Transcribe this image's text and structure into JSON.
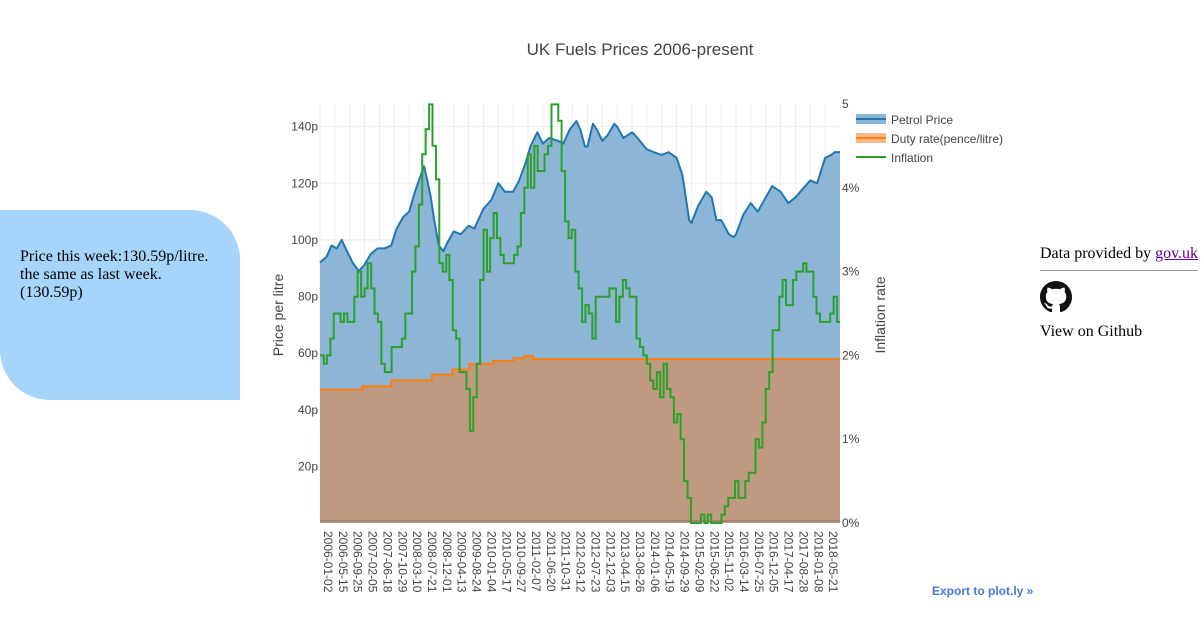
{
  "info": {
    "line1": "Price this week:130.59p/litre.",
    "line2": "the same as last week.",
    "line3": "(130.59p)"
  },
  "attribution": {
    "prefix": "Data provided by ",
    "link_text": "gov.uk",
    "github_text": "View on Github"
  },
  "export_text": "Export to plot.ly »",
  "colors": {
    "petrol_line": "#1f77b4",
    "petrol_fill": "#8cb5d6",
    "duty_line": "#ff7f0e",
    "duty_fill": "#c09a80",
    "inflation": "#2ca02c",
    "grid": "#eeeeee",
    "axis_text": "#444444"
  },
  "chart_data": {
    "type": "area",
    "title": "UK Fuels Prices 2006-present",
    "ylabel": "Price per litre",
    "y2label": "Inflation rate",
    "ylim": [
      0,
      148
    ],
    "y2lim": [
      0,
      5
    ],
    "yticks": [
      20,
      40,
      60,
      80,
      100,
      120,
      140
    ],
    "yticklabels": [
      "20p",
      "40p",
      "60p",
      "80p",
      "100p",
      "120p",
      "140p"
    ],
    "y2ticks": [
      0,
      1,
      2,
      3,
      4,
      5
    ],
    "y2ticklabels": [
      "0%",
      "1%",
      "2%",
      "3%",
      "4%",
      "5"
    ],
    "xrange": [
      "2006-01-02",
      "2018-10-01"
    ],
    "xticks": [
      "2006-01-02",
      "2006-05-15",
      "2006-09-25",
      "2007-02-05",
      "2007-06-18",
      "2007-10-29",
      "2008-03-10",
      "2008-07-21",
      "2008-12-01",
      "2009-04-13",
      "2009-08-24",
      "2010-01-04",
      "2010-05-17",
      "2010-09-27",
      "2011-02-07",
      "2011-06-20",
      "2011-10-31",
      "2012-03-12",
      "2012-07-23",
      "2012-12-03",
      "2013-04-15",
      "2013-08-26",
      "2014-01-06",
      "2014-05-19",
      "2014-09-29",
      "2015-02-09",
      "2015-06-22",
      "2015-11-02",
      "2016-03-14",
      "2016-07-25",
      "2016-12-05",
      "2017-04-17",
      "2017-08-28",
      "2018-01-08",
      "2018-05-21"
    ],
    "legend": {
      "placement": "top-right"
    },
    "grid": true,
    "series": [
      {
        "name": "Petrol Price",
        "axis": "y",
        "kind": "area",
        "points": [
          [
            "2006-01-02",
            92
          ],
          [
            "2006-03-01",
            94
          ],
          [
            "2006-04-15",
            98
          ],
          [
            "2006-06-01",
            97
          ],
          [
            "2006-07-15",
            100
          ],
          [
            "2006-09-01",
            96
          ],
          [
            "2006-10-20",
            92
          ],
          [
            "2006-12-15",
            89
          ],
          [
            "2007-02-01",
            91
          ],
          [
            "2007-04-01",
            95
          ],
          [
            "2007-06-01",
            97
          ],
          [
            "2007-08-01",
            97
          ],
          [
            "2007-10-01",
            98
          ],
          [
            "2007-11-20",
            104
          ],
          [
            "2008-01-15",
            108
          ],
          [
            "2008-03-10",
            110
          ],
          [
            "2008-05-01",
            117
          ],
          [
            "2008-06-15",
            122
          ],
          [
            "2008-07-21",
            126
          ],
          [
            "2008-08-20",
            121
          ],
          [
            "2008-09-20",
            115
          ],
          [
            "2008-10-20",
            107
          ],
          [
            "2008-12-01",
            98
          ],
          [
            "2009-01-10",
            96
          ],
          [
            "2009-02-15",
            99
          ],
          [
            "2009-04-13",
            103
          ],
          [
            "2009-06-15",
            102
          ],
          [
            "2009-08-24",
            105
          ],
          [
            "2009-10-15",
            104
          ],
          [
            "2010-01-04",
            111
          ],
          [
            "2010-03-15",
            114
          ],
          [
            "2010-05-17",
            120
          ],
          [
            "2010-07-15",
            117
          ],
          [
            "2010-09-27",
            117
          ],
          [
            "2010-11-20",
            121
          ],
          [
            "2011-01-15",
            127
          ],
          [
            "2011-03-01",
            133
          ],
          [
            "2011-05-01",
            138
          ],
          [
            "2011-06-20",
            134
          ],
          [
            "2011-08-15",
            136
          ],
          [
            "2011-10-31",
            135
          ],
          [
            "2011-12-20",
            134
          ],
          [
            "2012-02-15",
            139
          ],
          [
            "2012-04-15",
            142
          ],
          [
            "2012-05-20",
            139
          ],
          [
            "2012-07-01",
            133
          ],
          [
            "2012-07-23",
            133
          ],
          [
            "2012-09-10",
            141
          ],
          [
            "2012-10-15",
            139
          ],
          [
            "2012-12-03",
            135
          ],
          [
            "2013-01-20",
            137
          ],
          [
            "2013-03-20",
            141
          ],
          [
            "2013-04-15",
            140
          ],
          [
            "2013-06-10",
            136
          ],
          [
            "2013-08-26",
            138
          ],
          [
            "2013-10-15",
            136
          ],
          [
            "2013-12-15",
            133
          ],
          [
            "2014-01-06",
            132
          ],
          [
            "2014-03-10",
            131
          ],
          [
            "2014-05-19",
            130
          ],
          [
            "2014-07-20",
            131
          ],
          [
            "2014-09-29",
            129
          ],
          [
            "2014-11-20",
            123
          ],
          [
            "2015-01-20",
            107
          ],
          [
            "2015-02-09",
            106
          ],
          [
            "2015-04-10",
            112
          ],
          [
            "2015-06-22",
            117
          ],
          [
            "2015-08-10",
            115
          ],
          [
            "2015-09-20",
            107
          ],
          [
            "2015-11-02",
            107
          ],
          [
            "2016-01-10",
            102
          ],
          [
            "2016-02-20",
            101
          ],
          [
            "2016-03-14",
            102
          ],
          [
            "2016-05-20",
            109
          ],
          [
            "2016-07-25",
            113
          ],
          [
            "2016-09-25",
            110
          ],
          [
            "2016-12-05",
            115
          ],
          [
            "2017-02-01",
            119
          ],
          [
            "2017-04-17",
            117
          ],
          [
            "2017-06-25",
            113
          ],
          [
            "2017-08-28",
            115
          ],
          [
            "2017-11-01",
            118
          ],
          [
            "2018-01-08",
            121
          ],
          [
            "2018-03-10",
            120
          ],
          [
            "2018-05-21",
            129
          ],
          [
            "2018-07-15",
            130
          ],
          [
            "2018-08-15",
            131
          ],
          [
            "2018-10-01",
            131
          ]
        ]
      },
      {
        "name": "Duty rate(pence/litre)",
        "axis": "y",
        "kind": "area",
        "step": true,
        "points": [
          [
            "2006-01-02",
            47.1
          ],
          [
            "2007-01-15",
            48.3
          ],
          [
            "2007-10-01",
            50.4
          ],
          [
            "2008-10-01",
            52.4
          ],
          [
            "2009-04-01",
            54.2
          ],
          [
            "2009-09-01",
            56.2
          ],
          [
            "2010-04-01",
            57.2
          ],
          [
            "2010-10-01",
            58.2
          ],
          [
            "2011-01-04",
            58.95
          ],
          [
            "2011-03-23",
            57.95
          ],
          [
            "2018-10-01",
            57.95
          ]
        ]
      },
      {
        "name": "Inflation",
        "axis": "y2",
        "kind": "step",
        "points": [
          [
            "2006-01-02",
            2.0
          ],
          [
            "2006-02-05",
            1.9
          ],
          [
            "2006-03-05",
            2.0
          ],
          [
            "2006-04-05",
            2.2
          ],
          [
            "2006-05-05",
            2.5
          ],
          [
            "2006-06-05",
            2.5
          ],
          [
            "2006-07-05",
            2.4
          ],
          [
            "2006-08-05",
            2.5
          ],
          [
            "2006-09-05",
            2.4
          ],
          [
            "2006-10-05",
            2.4
          ],
          [
            "2006-11-05",
            2.7
          ],
          [
            "2006-12-05",
            3.0
          ],
          [
            "2007-01-05",
            2.7
          ],
          [
            "2007-02-05",
            2.8
          ],
          [
            "2007-03-05",
            3.1
          ],
          [
            "2007-04-05",
            2.8
          ],
          [
            "2007-05-05",
            2.5
          ],
          [
            "2007-06-05",
            2.4
          ],
          [
            "2007-07-05",
            1.9
          ],
          [
            "2007-08-05",
            1.8
          ],
          [
            "2007-09-05",
            1.8
          ],
          [
            "2007-10-05",
            2.1
          ],
          [
            "2007-11-05",
            2.1
          ],
          [
            "2007-12-05",
            2.1
          ],
          [
            "2008-01-05",
            2.2
          ],
          [
            "2008-02-05",
            2.5
          ],
          [
            "2008-03-05",
            2.5
          ],
          [
            "2008-04-05",
            3.0
          ],
          [
            "2008-05-05",
            3.3
          ],
          [
            "2008-06-05",
            3.8
          ],
          [
            "2008-07-05",
            4.4
          ],
          [
            "2008-08-05",
            4.7
          ],
          [
            "2008-09-05",
            5.2
          ],
          [
            "2008-10-05",
            4.5
          ],
          [
            "2008-11-05",
            4.1
          ],
          [
            "2008-12-05",
            3.1
          ],
          [
            "2009-01-05",
            3.0
          ],
          [
            "2009-02-05",
            3.2
          ],
          [
            "2009-03-05",
            2.9
          ],
          [
            "2009-04-05",
            2.3
          ],
          [
            "2009-05-05",
            2.2
          ],
          [
            "2009-06-05",
            1.8
          ],
          [
            "2009-07-05",
            1.8
          ],
          [
            "2009-08-05",
            1.6
          ],
          [
            "2009-09-05",
            1.1
          ],
          [
            "2009-10-05",
            1.5
          ],
          [
            "2009-11-05",
            1.9
          ],
          [
            "2009-12-05",
            2.9
          ],
          [
            "2010-01-05",
            3.5
          ],
          [
            "2010-02-05",
            3.0
          ],
          [
            "2010-03-05",
            3.4
          ],
          [
            "2010-04-05",
            3.7
          ],
          [
            "2010-05-05",
            3.4
          ],
          [
            "2010-06-05",
            3.2
          ],
          [
            "2010-07-05",
            3.1
          ],
          [
            "2010-08-05",
            3.1
          ],
          [
            "2010-09-05",
            3.1
          ],
          [
            "2010-10-05",
            3.2
          ],
          [
            "2010-11-05",
            3.3
          ],
          [
            "2010-12-05",
            3.7
          ],
          [
            "2011-01-05",
            4.0
          ],
          [
            "2011-02-05",
            4.4
          ],
          [
            "2011-03-05",
            4.0
          ],
          [
            "2011-04-05",
            4.5
          ],
          [
            "2011-05-05",
            4.2
          ],
          [
            "2011-06-05",
            4.2
          ],
          [
            "2011-07-05",
            4.4
          ],
          [
            "2011-08-05",
            4.5
          ],
          [
            "2011-09-05",
            5.2
          ],
          [
            "2011-10-05",
            5.0
          ],
          [
            "2011-11-05",
            4.8
          ],
          [
            "2011-12-05",
            4.2
          ],
          [
            "2012-01-05",
            3.6
          ],
          [
            "2012-02-05",
            3.4
          ],
          [
            "2012-03-05",
            3.5
          ],
          [
            "2012-04-05",
            3.0
          ],
          [
            "2012-05-05",
            2.8
          ],
          [
            "2012-06-05",
            2.4
          ],
          [
            "2012-07-05",
            2.6
          ],
          [
            "2012-08-05",
            2.5
          ],
          [
            "2012-09-05",
            2.2
          ],
          [
            "2012-10-05",
            2.7
          ],
          [
            "2012-11-05",
            2.7
          ],
          [
            "2012-12-05",
            2.7
          ],
          [
            "2013-01-05",
            2.7
          ],
          [
            "2013-02-05",
            2.8
          ],
          [
            "2013-03-05",
            2.8
          ],
          [
            "2013-04-05",
            2.4
          ],
          [
            "2013-05-05",
            2.7
          ],
          [
            "2013-06-05",
            2.9
          ],
          [
            "2013-07-05",
            2.8
          ],
          [
            "2013-08-05",
            2.7
          ],
          [
            "2013-09-05",
            2.7
          ],
          [
            "2013-10-05",
            2.2
          ],
          [
            "2013-11-05",
            2.1
          ],
          [
            "2013-12-05",
            2.0
          ],
          [
            "2014-01-05",
            1.9
          ],
          [
            "2014-02-05",
            1.7
          ],
          [
            "2014-03-05",
            1.6
          ],
          [
            "2014-04-05",
            1.8
          ],
          [
            "2014-05-05",
            1.5
          ],
          [
            "2014-06-05",
            1.9
          ],
          [
            "2014-07-05",
            1.6
          ],
          [
            "2014-08-05",
            1.5
          ],
          [
            "2014-09-05",
            1.2
          ],
          [
            "2014-10-05",
            1.3
          ],
          [
            "2014-11-05",
            1.0
          ],
          [
            "2014-12-05",
            0.5
          ],
          [
            "2015-01-05",
            0.3
          ],
          [
            "2015-02-05",
            0.0
          ],
          [
            "2015-03-05",
            0.0
          ],
          [
            "2015-04-05",
            -0.1
          ],
          [
            "2015-05-05",
            0.1
          ],
          [
            "2015-06-05",
            0.0
          ],
          [
            "2015-07-05",
            0.1
          ],
          [
            "2015-08-05",
            0.0
          ],
          [
            "2015-09-05",
            -0.1
          ],
          [
            "2015-10-05",
            -0.1
          ],
          [
            "2015-11-05",
            0.1
          ],
          [
            "2015-12-05",
            0.2
          ],
          [
            "2016-01-05",
            0.3
          ],
          [
            "2016-02-05",
            0.3
          ],
          [
            "2016-03-05",
            0.5
          ],
          [
            "2016-04-05",
            0.3
          ],
          [
            "2016-05-05",
            0.3
          ],
          [
            "2016-06-05",
            0.5
          ],
          [
            "2016-07-05",
            0.6
          ],
          [
            "2016-08-05",
            0.6
          ],
          [
            "2016-09-05",
            1.0
          ],
          [
            "2016-10-05",
            0.9
          ],
          [
            "2016-11-05",
            1.2
          ],
          [
            "2016-12-05",
            1.6
          ],
          [
            "2017-01-05",
            1.8
          ],
          [
            "2017-02-05",
            2.3
          ],
          [
            "2017-03-05",
            2.3
          ],
          [
            "2017-04-05",
            2.7
          ],
          [
            "2017-05-05",
            2.9
          ],
          [
            "2017-06-05",
            2.6
          ],
          [
            "2017-07-05",
            2.6
          ],
          [
            "2017-08-05",
            2.9
          ],
          [
            "2017-09-05",
            3.0
          ],
          [
            "2017-10-05",
            3.0
          ],
          [
            "2017-11-05",
            3.1
          ],
          [
            "2017-12-05",
            3.0
          ],
          [
            "2018-01-05",
            3.0
          ],
          [
            "2018-02-05",
            2.7
          ],
          [
            "2018-03-05",
            2.5
          ],
          [
            "2018-04-05",
            2.4
          ],
          [
            "2018-05-05",
            2.4
          ],
          [
            "2018-06-05",
            2.4
          ],
          [
            "2018-07-05",
            2.5
          ],
          [
            "2018-08-05",
            2.7
          ],
          [
            "2018-09-05",
            2.4
          ],
          [
            "2018-10-01",
            2.4
          ]
        ]
      }
    ]
  }
}
